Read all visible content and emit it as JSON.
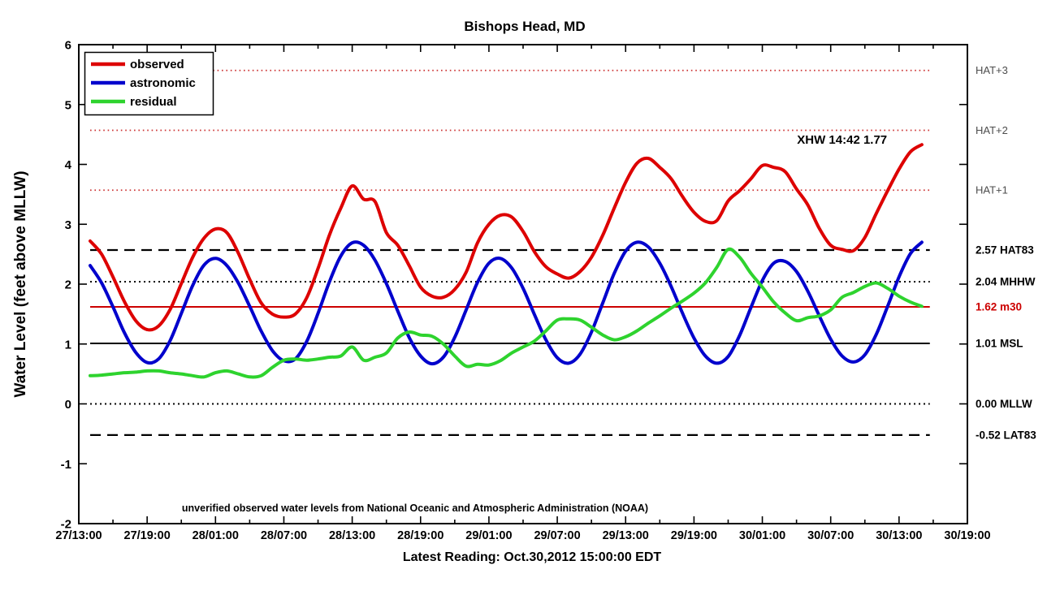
{
  "title": "Bishops Head, MD",
  "axes": {
    "ylabel": "Water Level (feet above MLLW)",
    "xlabel": "Latest Reading: Oct.30,2012 15:00:00 EDT",
    "ylim": [
      -2,
      6
    ],
    "xlim_hours": [
      0,
      78
    ],
    "y_ticks": [
      6,
      5,
      4,
      3,
      2,
      1,
      0,
      -1,
      -2
    ],
    "x_tick_step_hours": 6,
    "x_minor_tick_step_hours": 3,
    "x_tick_labels": [
      "27/13:00",
      "27/19:00",
      "28/01:00",
      "28/07:00",
      "28/13:00",
      "28/19:00",
      "29/01:00",
      "29/07:00",
      "29/13:00",
      "29/19:00",
      "30/01:00",
      "30/07:00",
      "30/13:00",
      "30/19:00"
    ]
  },
  "legend": {
    "entries": [
      {
        "label": "observed",
        "color": "#dd0000"
      },
      {
        "label": "astronomic",
        "color": "#0000cc"
      },
      {
        "label": "residual",
        "color": "#2ed32e"
      }
    ]
  },
  "annotation": {
    "text": "XHW 14:42 1.77",
    "hour": 67,
    "value": 4.4
  },
  "footnote": "unverified observed water levels from National Oceanic and Atmospheric Administration (NOAA)",
  "colors": {
    "axis": "#000000",
    "background": "#ffffff",
    "red_reference": "#cc3333"
  },
  "chart_data": {
    "type": "line",
    "x_unit": "hours since Oct.27 13:00",
    "x_start": 1,
    "x_step": 1,
    "x_end": 74,
    "xlim": [
      0,
      78
    ],
    "ylim": [
      -2,
      6
    ],
    "grid": false,
    "legend_position": "top-left",
    "reference_span_hours": [
      1,
      74.7
    ],
    "series": [
      {
        "name": "observed",
        "color": "#dd0000",
        "values": [
          2.72,
          2.5,
          2.12,
          1.71,
          1.39,
          1.24,
          1.3,
          1.57,
          2.01,
          2.45,
          2.77,
          2.92,
          2.86,
          2.52,
          2.08,
          1.69,
          1.5,
          1.45,
          1.5,
          1.77,
          2.26,
          2.82,
          3.27,
          3.64,
          3.42,
          3.38,
          2.86,
          2.65,
          2.31,
          1.95,
          1.8,
          1.78,
          1.91,
          2.2,
          2.69,
          3.0,
          3.15,
          3.12,
          2.88,
          2.54,
          2.29,
          2.17,
          2.1,
          2.21,
          2.45,
          2.82,
          3.27,
          3.7,
          4.02,
          4.1,
          3.95,
          3.76,
          3.46,
          3.2,
          3.05,
          3.06,
          3.39,
          3.56,
          3.76,
          3.98,
          3.95,
          3.88,
          3.59,
          3.32,
          2.93,
          2.65,
          2.58,
          2.56,
          2.78,
          3.18,
          3.56,
          3.92,
          4.21,
          4.33
        ]
      },
      {
        "name": "astronomic",
        "color": "#0000cc",
        "values": [
          2.31,
          2.02,
          1.62,
          1.19,
          0.86,
          0.69,
          0.75,
          1.05,
          1.51,
          1.98,
          2.32,
          2.43,
          2.31,
          2.02,
          1.63,
          1.22,
          0.89,
          0.72,
          0.75,
          1.04,
          1.51,
          2.04,
          2.47,
          2.69,
          2.65,
          2.4,
          2.01,
          1.55,
          1.11,
          0.8,
          0.67,
          0.78,
          1.11,
          1.57,
          2.03,
          2.35,
          2.43,
          2.27,
          1.93,
          1.49,
          1.07,
          0.77,
          0.68,
          0.83,
          1.2,
          1.69,
          2.18,
          2.55,
          2.7,
          2.62,
          2.35,
          1.96,
          1.51,
          1.1,
          0.8,
          0.68,
          0.79,
          1.14,
          1.61,
          2.06,
          2.35,
          2.38,
          2.21,
          1.88,
          1.47,
          1.08,
          0.8,
          0.7,
          0.82,
          1.16,
          1.63,
          2.12,
          2.51,
          2.7
        ]
      },
      {
        "name": "residual",
        "color": "#2ed32e",
        "values": [
          0.47,
          0.48,
          0.5,
          0.52,
          0.53,
          0.55,
          0.55,
          0.52,
          0.5,
          0.47,
          0.45,
          0.52,
          0.55,
          0.5,
          0.45,
          0.47,
          0.61,
          0.73,
          0.75,
          0.73,
          0.75,
          0.78,
          0.8,
          0.95,
          0.73,
          0.78,
          0.85,
          1.1,
          1.2,
          1.15,
          1.13,
          1.0,
          0.8,
          0.63,
          0.66,
          0.65,
          0.72,
          0.85,
          0.95,
          1.05,
          1.22,
          1.4,
          1.42,
          1.4,
          1.28,
          1.15,
          1.07,
          1.12,
          1.22,
          1.35,
          1.47,
          1.6,
          1.72,
          1.85,
          2.02,
          2.28,
          2.58,
          2.45,
          2.18,
          1.95,
          1.7,
          1.52,
          1.39,
          1.44,
          1.47,
          1.57,
          1.78,
          1.86,
          1.96,
          2.02,
          1.93,
          1.8,
          1.7,
          1.63
        ]
      }
    ],
    "reference_lines": [
      {
        "label": "HAT+3",
        "value": 5.57,
        "style": "dotted",
        "color": "#cc3333",
        "label_style": "plain"
      },
      {
        "label": "HAT+2",
        "value": 4.57,
        "style": "dotted",
        "color": "#cc3333",
        "label_style": "plain"
      },
      {
        "label": "HAT+1",
        "value": 3.57,
        "style": "dotted",
        "color": "#cc3333",
        "label_style": "plain"
      },
      {
        "label": "2.57 HAT83",
        "value": 2.57,
        "style": "dashed",
        "color": "#000000",
        "label_style": "bold"
      },
      {
        "label": "2.04 MHHW",
        "value": 2.04,
        "style": "dotted",
        "color": "#000000",
        "label_style": "bold"
      },
      {
        "label": "1.62 m30",
        "value": 1.62,
        "style": "solid",
        "color": "#cc0000",
        "label_style": "bold-red"
      },
      {
        "label": "1.01 MSL",
        "value": 1.01,
        "style": "solid",
        "color": "#000000",
        "label_style": "bold"
      },
      {
        "label": "0.00 MLLW",
        "value": 0.0,
        "style": "dotted",
        "color": "#000000",
        "label_style": "bold"
      },
      {
        "label": "-0.52 LAT83",
        "value": -0.52,
        "style": "dashed",
        "color": "#000000",
        "label_style": "bold"
      }
    ]
  }
}
